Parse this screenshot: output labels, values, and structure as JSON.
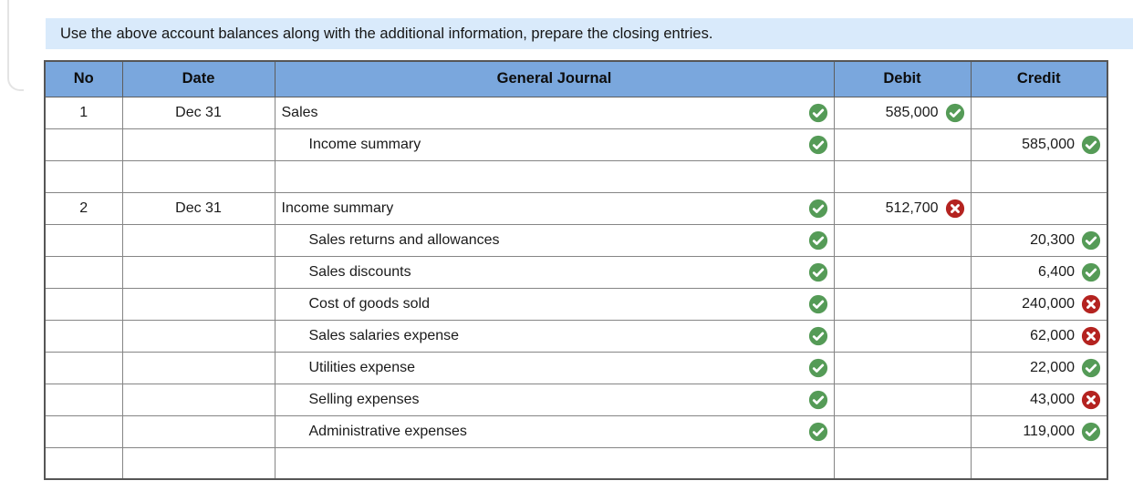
{
  "instruction": "Use the above account balances along with the additional information, prepare the closing entries.",
  "colors": {
    "instruction_bg": "#d9eafb",
    "header_bg": "#7aa7dd",
    "answered_cell_bg": "#f3f6f2",
    "correct_cell_bg": "#f2f6f0",
    "incorrect_cell_bg": "#fcefee",
    "correct_green": "#559b57",
    "incorrect_red": "#b42320"
  },
  "icons": {
    "correct": "check-circle-icon",
    "incorrect": "x-circle-icon"
  },
  "table": {
    "headers": {
      "no": "No",
      "date": "Date",
      "journal": "General Journal",
      "debit": "Debit",
      "credit": "Credit"
    },
    "rows": [
      {
        "no": "1",
        "date": "Dec 31",
        "account": "Sales",
        "indent": false,
        "journal_status": "correct",
        "debit": "585,000",
        "debit_status": "correct",
        "credit": "",
        "credit_status": null
      },
      {
        "no": "",
        "date": "",
        "account": "Income summary",
        "indent": true,
        "journal_status": "correct",
        "debit": "",
        "debit_status": null,
        "credit": "585,000",
        "credit_status": "correct"
      },
      {
        "no": "",
        "date": "",
        "account": "",
        "indent": false,
        "journal_status": null,
        "debit": "",
        "debit_status": null,
        "credit": "",
        "credit_status": null
      },
      {
        "no": "2",
        "date": "Dec 31",
        "account": "Income summary",
        "indent": false,
        "journal_status": "correct",
        "debit": "512,700",
        "debit_status": "incorrect",
        "credit": "",
        "credit_status": null
      },
      {
        "no": "",
        "date": "",
        "account": "Sales returns and allowances",
        "indent": true,
        "journal_status": "correct",
        "debit": "",
        "debit_status": null,
        "credit": "20,300",
        "credit_status": "correct"
      },
      {
        "no": "",
        "date": "",
        "account": "Sales discounts",
        "indent": true,
        "journal_status": "correct",
        "debit": "",
        "debit_status": null,
        "credit": "6,400",
        "credit_status": "correct"
      },
      {
        "no": "",
        "date": "",
        "account": "Cost of goods sold",
        "indent": true,
        "journal_status": "correct",
        "debit": "",
        "debit_status": null,
        "credit": "240,000",
        "credit_status": "incorrect"
      },
      {
        "no": "",
        "date": "",
        "account": "Sales salaries expense",
        "indent": true,
        "journal_status": "correct",
        "debit": "",
        "debit_status": null,
        "credit": "62,000",
        "credit_status": "incorrect"
      },
      {
        "no": "",
        "date": "",
        "account": "Utilities expense",
        "indent": true,
        "journal_status": "correct",
        "debit": "",
        "debit_status": null,
        "credit": "22,000",
        "credit_status": "correct"
      },
      {
        "no": "",
        "date": "",
        "account": "Selling expenses",
        "indent": true,
        "journal_status": "correct",
        "debit": "",
        "debit_status": null,
        "credit": "43,000",
        "credit_status": "incorrect"
      },
      {
        "no": "",
        "date": "",
        "account": "Administrative expenses",
        "indent": true,
        "journal_status": "correct",
        "debit": "",
        "debit_status": null,
        "credit": "119,000",
        "credit_status": "correct"
      },
      {
        "no": "",
        "date": "",
        "account": "",
        "indent": false,
        "journal_status": null,
        "debit": "",
        "debit_status": null,
        "credit": "",
        "credit_status": null
      }
    ]
  }
}
